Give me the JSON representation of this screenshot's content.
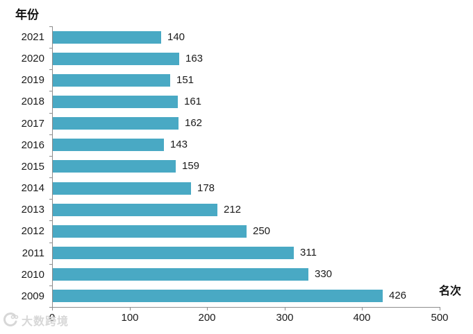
{
  "chart_data": {
    "type": "bar",
    "orientation": "horizontal",
    "title": "年份",
    "xlabel": "名次",
    "categories": [
      "2021",
      "2020",
      "2019",
      "2018",
      "2017",
      "2016",
      "2015",
      "2014",
      "2013",
      "2012",
      "2011",
      "2010",
      "2009"
    ],
    "values": [
      140,
      163,
      151,
      161,
      162,
      143,
      159,
      178,
      212,
      250,
      311,
      330,
      426
    ],
    "xlim": [
      0,
      500
    ],
    "xticks": [
      0,
      100,
      200,
      300,
      400,
      500
    ],
    "data_labels": true,
    "grid": false,
    "legend": "none",
    "bar_color": "#49a9c4",
    "axis_color": "#8c8c8c",
    "text_color": "#1a1a1a"
  },
  "watermark": {
    "text": "大数跨境"
  }
}
